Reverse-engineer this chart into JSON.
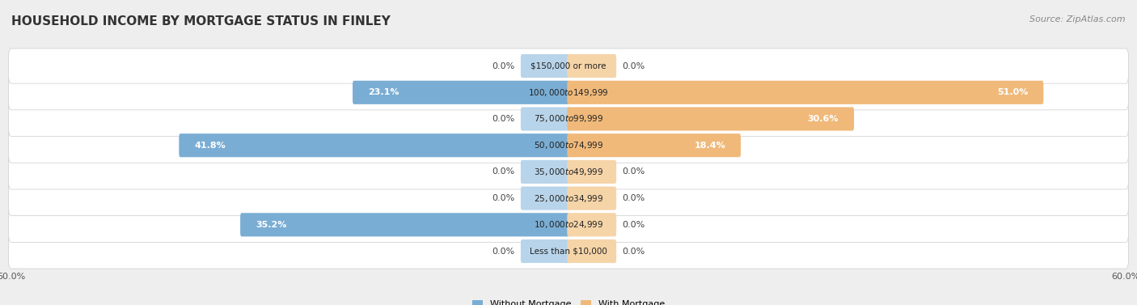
{
  "title": "HOUSEHOLD INCOME BY MORTGAGE STATUS IN FINLEY",
  "source": "Source: ZipAtlas.com",
  "categories": [
    "Less than $10,000",
    "$10,000 to $24,999",
    "$25,000 to $34,999",
    "$35,000 to $49,999",
    "$50,000 to $74,999",
    "$75,000 to $99,999",
    "$100,000 to $149,999",
    "$150,000 or more"
  ],
  "without_mortgage": [
    0.0,
    35.2,
    0.0,
    0.0,
    41.8,
    0.0,
    23.1,
    0.0
  ],
  "with_mortgage": [
    0.0,
    0.0,
    0.0,
    0.0,
    18.4,
    30.6,
    51.0,
    0.0
  ],
  "color_without": "#7aadd4",
  "color_with": "#f0b97a",
  "color_without_light": "#b8d4ea",
  "color_with_light": "#f5d4a8",
  "xlim": 60.0,
  "background_color": "#eeeeee",
  "row_border_color": "#cccccc",
  "legend_labels": [
    "Without Mortgage",
    "With Mortgage"
  ],
  "title_fontsize": 11,
  "source_fontsize": 8,
  "label_fontsize": 8,
  "category_fontsize": 7.5,
  "axis_label_fontsize": 8,
  "stub_size": 5.0
}
